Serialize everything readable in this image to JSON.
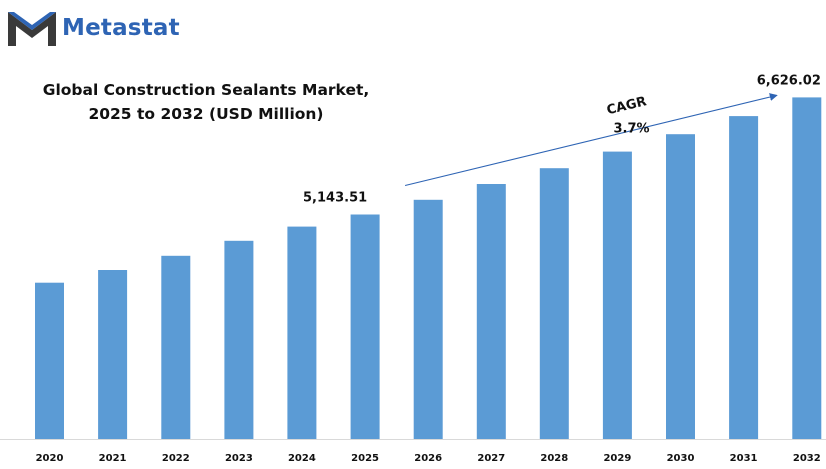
{
  "brand": {
    "name": "Metastat",
    "logo_icon": "metastat-m-logo-icon",
    "brand_color": "#2e64b4",
    "dark_color": "#3a3a3a"
  },
  "title_line1": "Global Construction  Sealants Market,",
  "title_line2": "2025 to 2032 (USD Million)",
  "chart_data": {
    "type": "bar",
    "categories": [
      "2020",
      "2021",
      "2022",
      "2023",
      "2024",
      "2025",
      "2026",
      "2027",
      "2028",
      "2029",
      "2030",
      "2031",
      "2032"
    ],
    "values": [
      4280,
      4440,
      4620,
      4810,
      4990,
      5143.51,
      5330,
      5530,
      5730,
      5940,
      6160,
      6390,
      6626.02
    ],
    "bar_color": "#5b9bd5",
    "ylim": [
      2300,
      7100
    ],
    "grid": false,
    "data_labels": [
      {
        "index": 5,
        "text": "5,143.51"
      },
      {
        "index": 12,
        "text": "6,626.02"
      }
    ],
    "annotation": {
      "label": "CAGR",
      "value": "3.7%",
      "from_index": 5,
      "to_index": 12,
      "arrow_color": "#2e64b4"
    }
  }
}
